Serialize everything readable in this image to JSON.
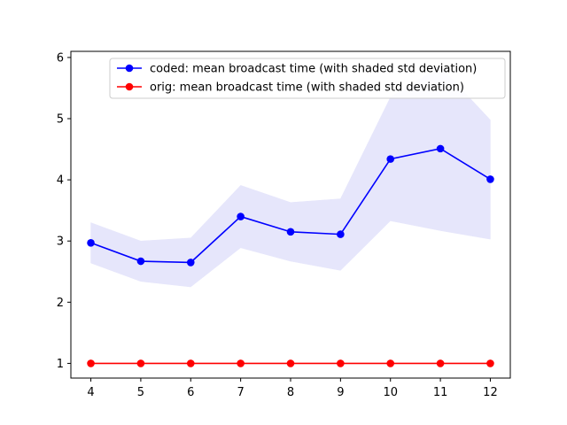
{
  "chart_data": {
    "type": "line",
    "title": "",
    "xlabel": "",
    "ylabel": "",
    "x": [
      4,
      5,
      6,
      7,
      8,
      9,
      10,
      11,
      12
    ],
    "xlim": [
      3.6,
      12.4
    ],
    "ylim": [
      0.76,
      6.1
    ],
    "xticks": [
      4,
      5,
      6,
      7,
      8,
      9,
      10,
      11,
      12
    ],
    "yticks": [
      1,
      2,
      3,
      4,
      5,
      6
    ],
    "grid": false,
    "legend_position": "top-right",
    "series": [
      {
        "name": "coded: mean broadcast time (with shaded std deviation)",
        "color": "#0000ff",
        "band_color": "#e6e6fb",
        "values": [
          2.97,
          2.67,
          2.65,
          3.4,
          3.15,
          3.11,
          4.34,
          4.51,
          4.01
        ],
        "band_upper": [
          3.3,
          3.0,
          3.05,
          3.91,
          3.63,
          3.69,
          5.35,
          5.85,
          4.98
        ],
        "band_lower": [
          2.64,
          2.34,
          2.25,
          2.89,
          2.67,
          2.52,
          3.33,
          3.17,
          3.03
        ]
      },
      {
        "name": "orig: mean broadcast time (with shaded std deviation)",
        "color": "#ff0000",
        "values": [
          1,
          1,
          1,
          1,
          1,
          1,
          1,
          1,
          1
        ],
        "band_upper": [
          1,
          1,
          1,
          1,
          1,
          1,
          1,
          1,
          1
        ],
        "band_lower": [
          1,
          1,
          1,
          1,
          1,
          1,
          1,
          1,
          1
        ]
      }
    ]
  }
}
